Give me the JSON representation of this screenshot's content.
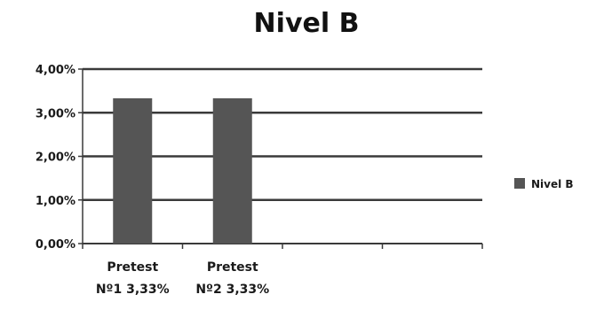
{
  "chart_data": {
    "type": "bar",
    "title": "Nivel B",
    "categories": [
      {
        "line1": "Pretest",
        "line2": "Nº1  3,33%"
      },
      {
        "line1": "Pretest",
        "line2": "Nº2  3,33%"
      }
    ],
    "empty_slots": 2,
    "series": [
      {
        "name": "Nivel B",
        "values": [
          3.33,
          3.33
        ],
        "color": "#555555"
      }
    ],
    "ylim": [
      0,
      4
    ],
    "yticks": [
      {
        "value": 0,
        "label": "0,00%"
      },
      {
        "value": 1,
        "label": "1,00%"
      },
      {
        "value": 2,
        "label": "2,00%"
      },
      {
        "value": 3,
        "label": "3,00%"
      },
      {
        "value": 4,
        "label": "4,00%"
      }
    ],
    "grid": true,
    "legend_position": "right",
    "gridline_color": "#3a3a3a"
  }
}
